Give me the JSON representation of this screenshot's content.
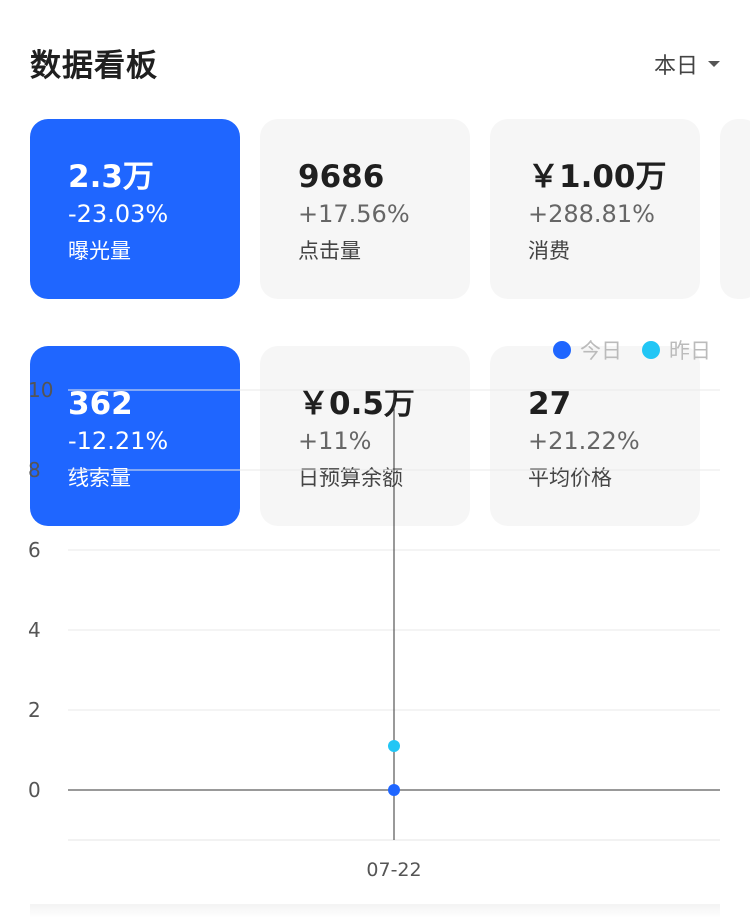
{
  "header": {
    "title": "数据看板",
    "period_label": "本日"
  },
  "metrics_row1": [
    {
      "value": "2.3万",
      "change": "-23.03%",
      "label": "曝光量",
      "active": true
    },
    {
      "value": "9686",
      "change": "+17.56%",
      "label": "点击量",
      "active": false
    },
    {
      "value": "￥1.00万",
      "change": "+288.81%",
      "label": "消费",
      "active": false
    }
  ],
  "metrics_row2": [
    {
      "value": "362",
      "change": "-12.21%",
      "label": "线索量",
      "active": true
    },
    {
      "value": "￥0.5万",
      "change": "+11%",
      "label": "日预算余额",
      "active": false
    },
    {
      "value": "27",
      "change": "+21.22%",
      "label": "平均价格",
      "active": false
    }
  ],
  "colors": {
    "accent": "#1f66ff",
    "today": "#1f66ff",
    "yesterday": "#22c6f5"
  },
  "chart_data": {
    "type": "scatter",
    "x": [
      "07-22"
    ],
    "series": [
      {
        "name": "今日",
        "values": [
          0
        ]
      },
      {
        "name": "昨日",
        "values": [
          1.1
        ]
      }
    ],
    "ylim": [
      0,
      10
    ],
    "yticks": [
      0,
      2,
      4,
      6,
      8,
      10
    ],
    "grid": true,
    "legend": "top-right"
  }
}
